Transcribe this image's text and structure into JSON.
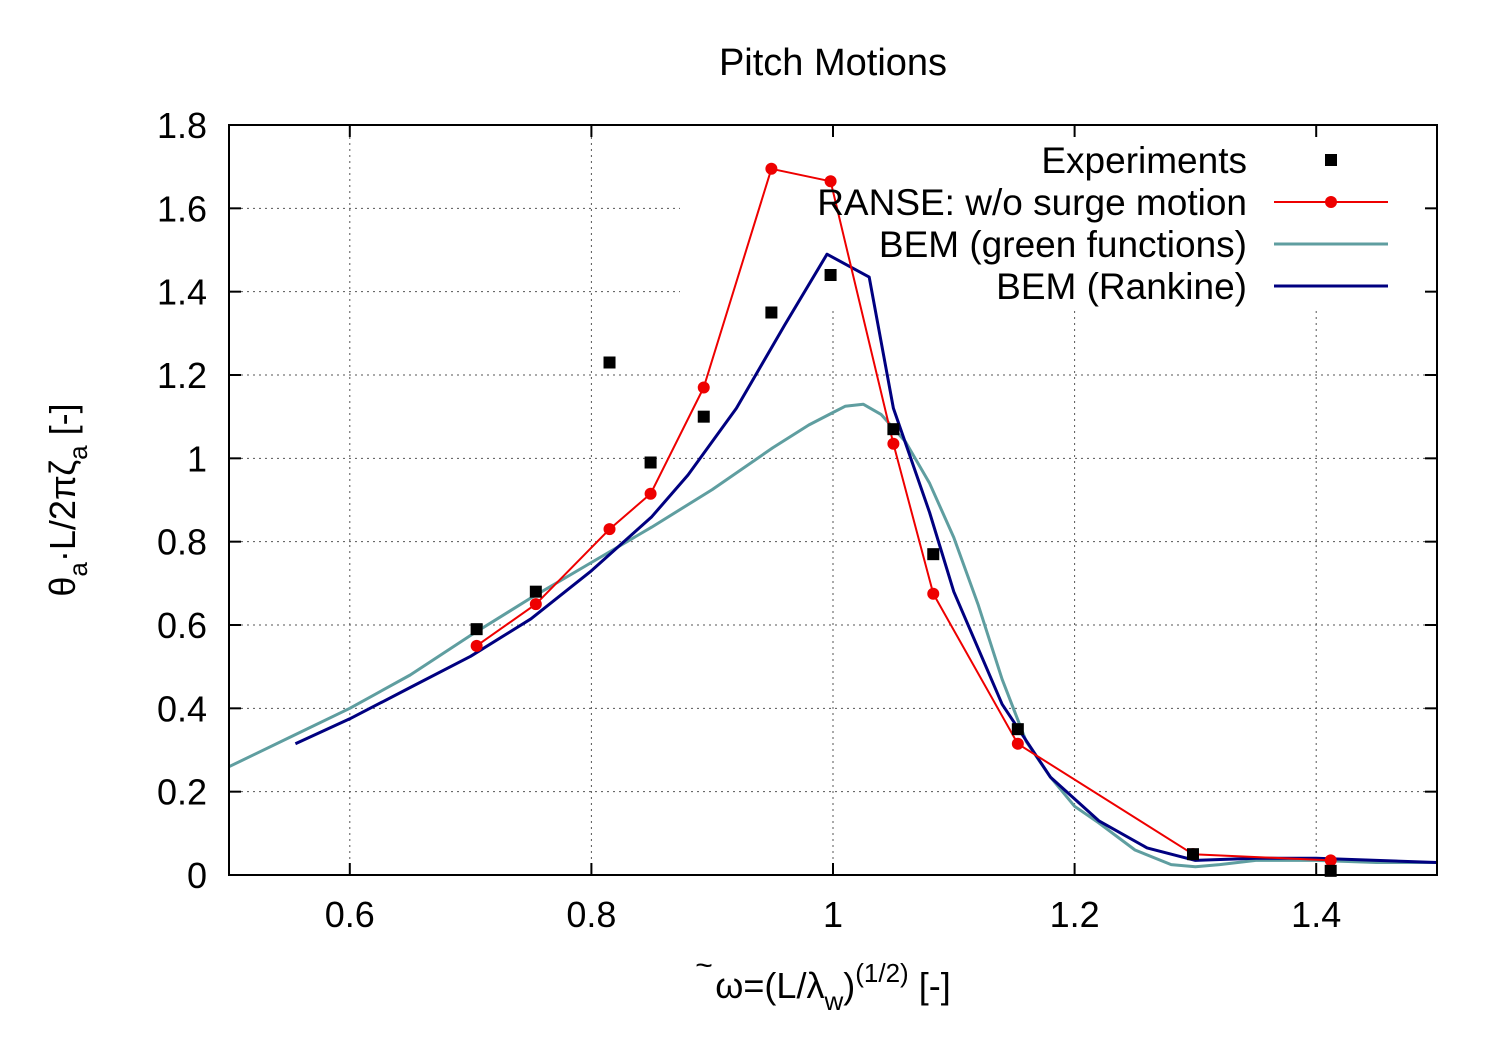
{
  "chart_data": {
    "type": "line",
    "title": "Pitch Motions",
    "xlabel": {
      "base": "ω",
      "mark": "~",
      "mid": "=(L/λ",
      "sub": "w",
      "close": ")",
      "sup": "(1/2)",
      "unit": " [-]"
    },
    "ylabel": {
      "p1": "θ",
      "s1": "a",
      "p2": "·L/2πζ",
      "s2": "a",
      "p3": " [-]"
    },
    "xlim": [
      0.5,
      1.5
    ],
    "ylim": [
      0,
      1.8
    ],
    "xticks": [
      0.6,
      0.8,
      1,
      1.2,
      1.4
    ],
    "xtick_labels": [
      "0.6",
      "0.8",
      "1",
      "1.2",
      "1.4"
    ],
    "yticks": [
      0,
      0.2,
      0.4,
      0.6,
      0.8,
      1,
      1.2,
      1.4,
      1.6,
      1.8
    ],
    "ytick_labels": [
      "0",
      "0.2",
      "0.4",
      "0.6",
      "0.8",
      "1",
      "1.2",
      "1.4",
      "1.6",
      "1.8"
    ],
    "grid": true,
    "legend_position": "top-right",
    "series": [
      {
        "name": "Experiments",
        "style": "marker",
        "marker": "square",
        "color": "#000000",
        "x": [
          0.705,
          0.754,
          0.815,
          0.849,
          0.893,
          0.949,
          0.998,
          1.05,
          1.083,
          1.153,
          1.298,
          1.412
        ],
        "y": [
          0.59,
          0.68,
          1.23,
          0.99,
          1.1,
          1.35,
          1.44,
          1.07,
          0.77,
          0.35,
          0.05,
          0.01
        ]
      },
      {
        "name": "RANSE: w/o surge motion",
        "style": "line+marker",
        "marker": "circle",
        "color": "#ee0000",
        "x": [
          0.705,
          0.754,
          0.815,
          0.849,
          0.893,
          0.949,
          0.998,
          1.05,
          1.083,
          1.153,
          1.298,
          1.412
        ],
        "y": [
          0.55,
          0.65,
          0.83,
          0.915,
          1.17,
          1.695,
          1.665,
          1.035,
          0.675,
          0.315,
          0.05,
          0.035
        ]
      },
      {
        "name": "BEM (green functions)",
        "style": "line",
        "color": "#5f9ea0",
        "x": [
          0.5,
          0.55,
          0.6,
          0.65,
          0.7,
          0.75,
          0.8,
          0.85,
          0.9,
          0.95,
          0.98,
          1.0,
          1.01,
          1.025,
          1.04,
          1.06,
          1.08,
          1.1,
          1.12,
          1.14,
          1.16,
          1.18,
          1.2,
          1.22,
          1.25,
          1.28,
          1.3,
          1.32,
          1.35,
          1.4,
          1.45,
          1.5
        ],
        "y": [
          0.26,
          0.33,
          0.4,
          0.48,
          0.575,
          0.665,
          0.75,
          0.835,
          0.925,
          1.025,
          1.08,
          1.11,
          1.125,
          1.13,
          1.105,
          1.04,
          0.94,
          0.81,
          0.65,
          0.47,
          0.32,
          0.235,
          0.165,
          0.125,
          0.06,
          0.025,
          0.02,
          0.025,
          0.035,
          0.035,
          0.03,
          0.03
        ]
      },
      {
        "name": "BEM (Rankine)",
        "style": "line",
        "color": "#000080",
        "x": [
          0.555,
          0.6,
          0.65,
          0.7,
          0.75,
          0.8,
          0.85,
          0.88,
          0.92,
          0.96,
          0.995,
          1.03,
          1.05,
          1.08,
          1.1,
          1.14,
          1.18,
          1.22,
          1.26,
          1.3,
          1.35,
          1.4,
          1.45,
          1.5
        ],
        "y": [
          0.315,
          0.375,
          0.45,
          0.525,
          0.615,
          0.73,
          0.86,
          0.96,
          1.12,
          1.32,
          1.49,
          1.435,
          1.12,
          0.87,
          0.68,
          0.41,
          0.235,
          0.13,
          0.065,
          0.035,
          0.04,
          0.04,
          0.035,
          0.03
        ]
      }
    ]
  }
}
